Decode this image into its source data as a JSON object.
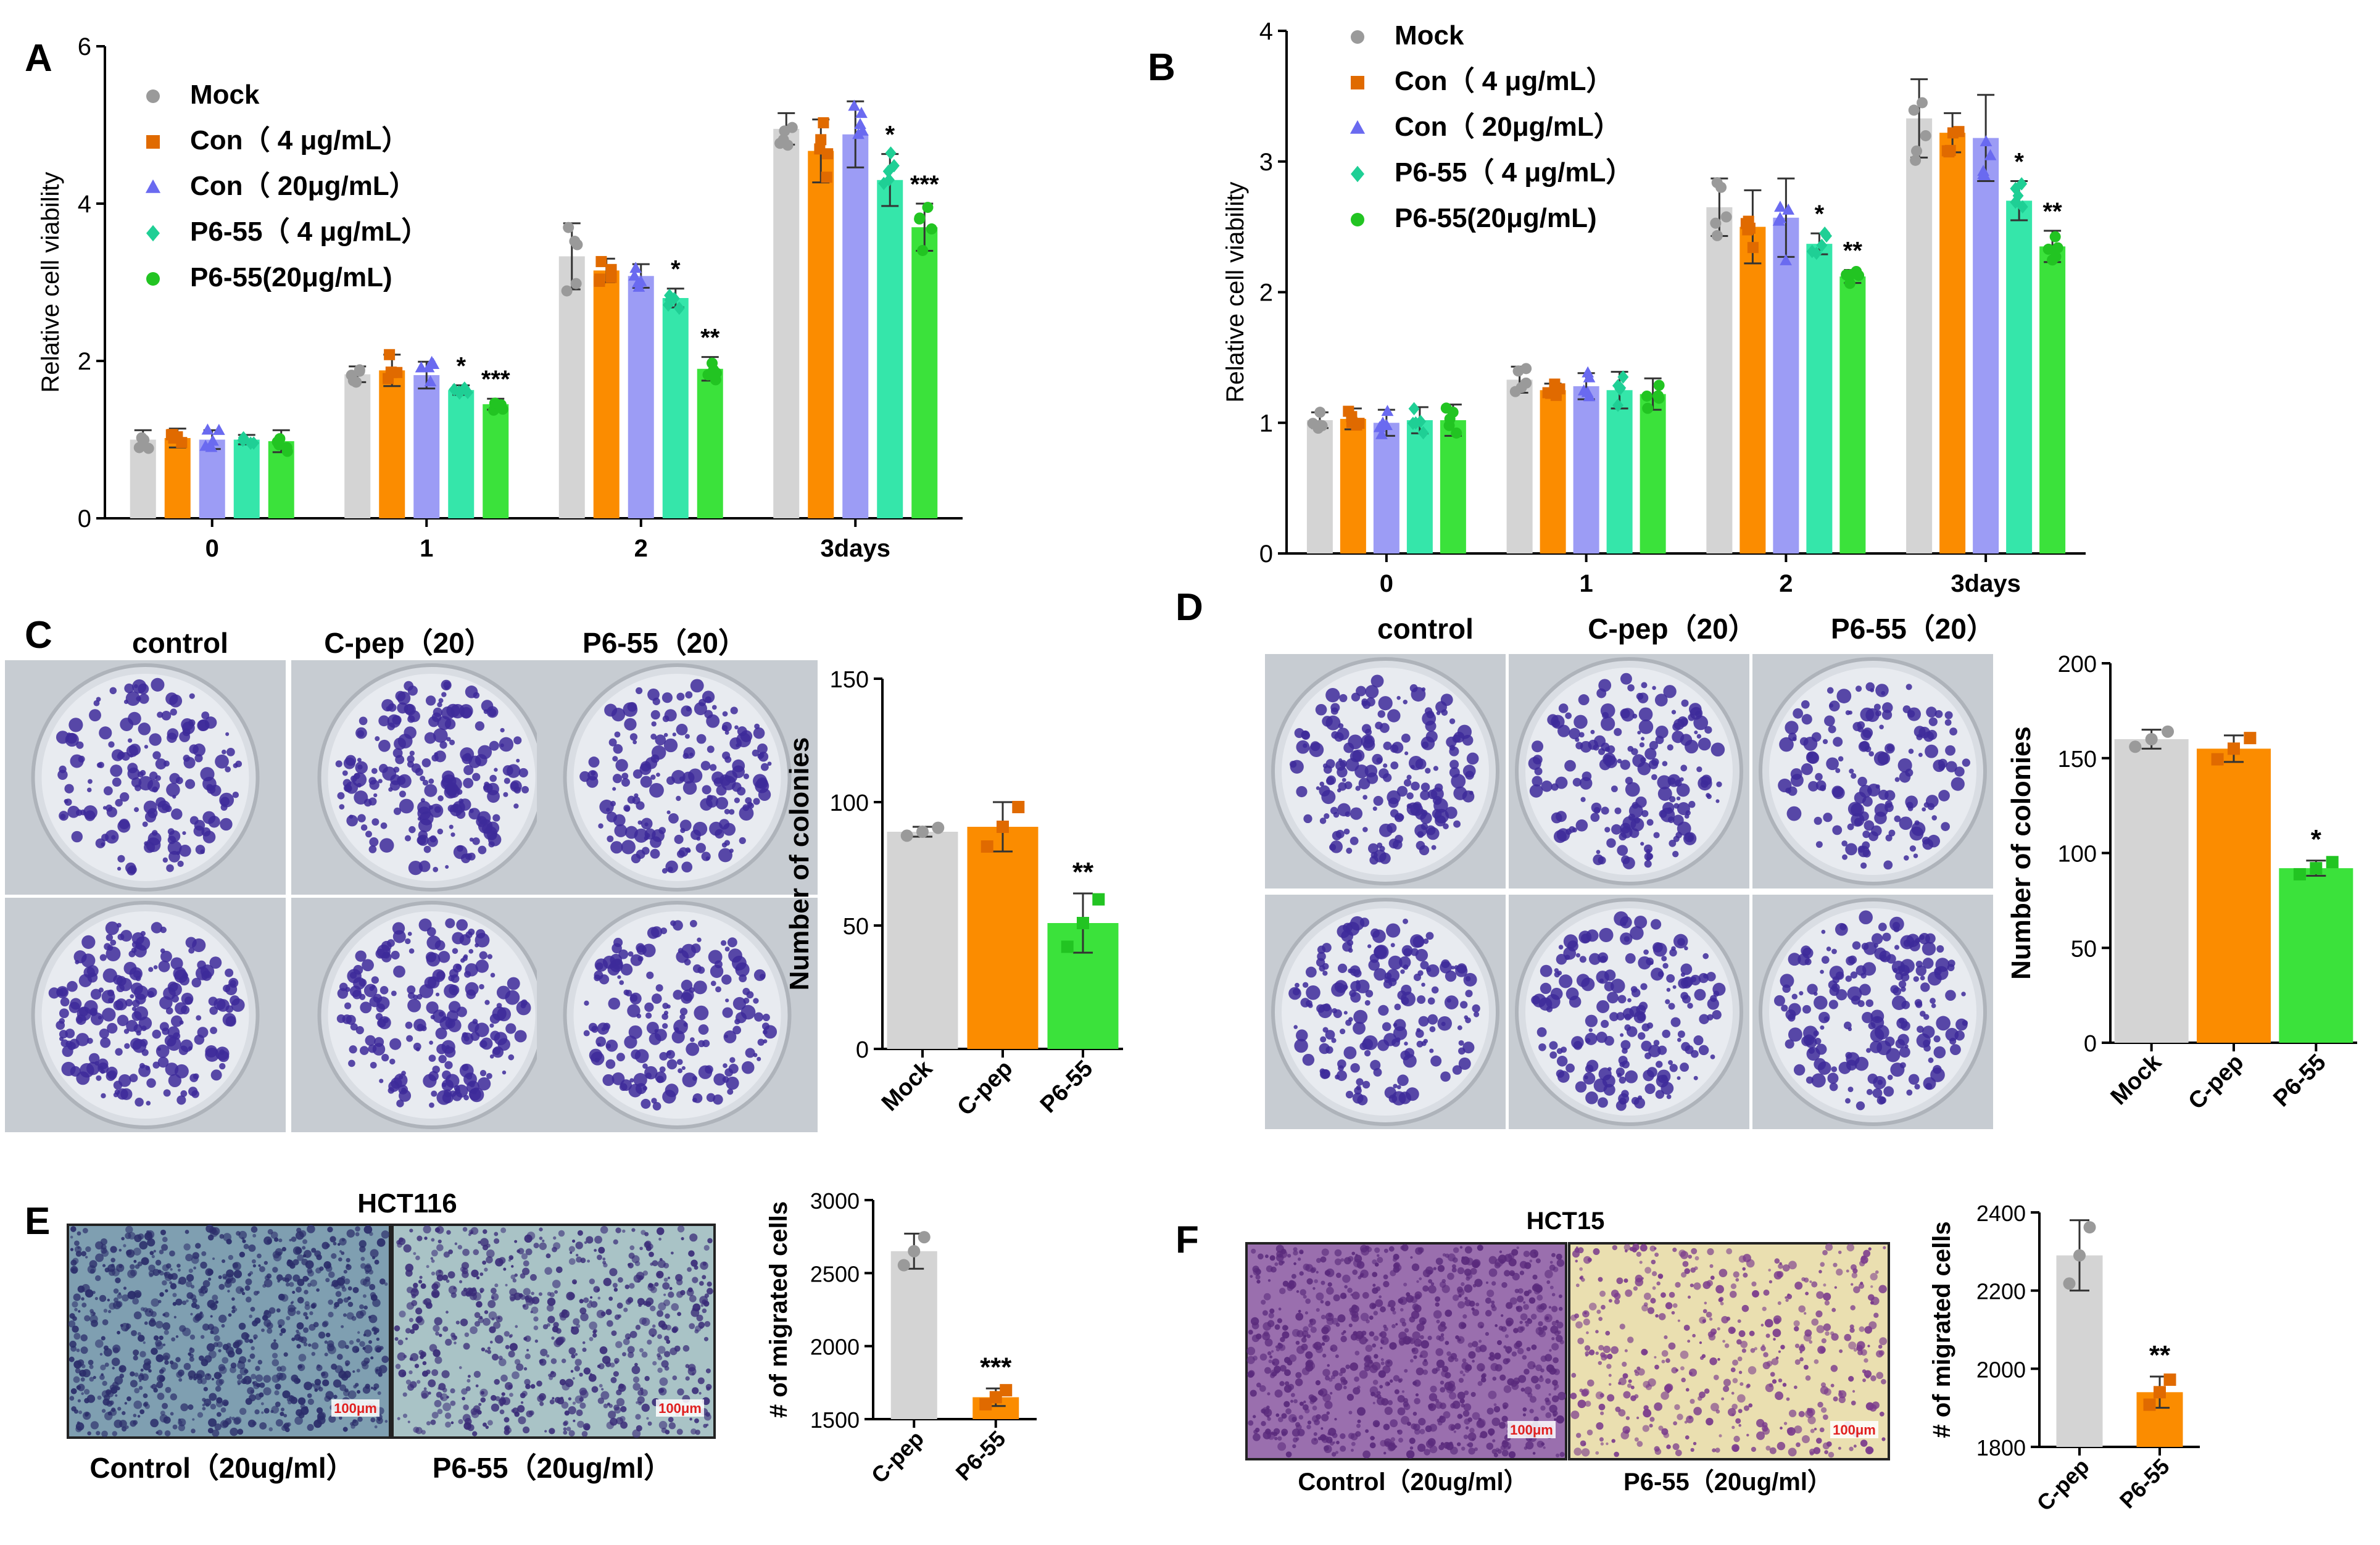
{
  "figure": {
    "panel_letters": [
      "A",
      "B",
      "C",
      "D",
      "E",
      "F"
    ],
    "colors": {
      "mock": "#d4d4d4",
      "con4": "#fb8c00",
      "con20": "#9c9cf5",
      "p4": "#35e6aa",
      "p20": "#3be23b",
      "text": "#000000"
    }
  },
  "chart_data": [
    {
      "panel": "A",
      "type": "bar",
      "categories": [
        "0",
        "1",
        "2",
        "3days"
      ],
      "xlabel": "",
      "ylabel": "Relative cell viability",
      "ylim": [
        0,
        6
      ],
      "yticks": [
        "0",
        "2",
        "4",
        "6"
      ],
      "legend": [
        "Mock",
        "Con（ 4 μg/mL）",
        "Con（ 20μg/mL）",
        "P6-55（ 4 μg/mL）",
        "P6-55(20μg/mL)"
      ],
      "legend_position": "top-left",
      "series": [
        {
          "name": "Mock",
          "values": [
            1.0,
            1.83,
            3.33,
            4.95
          ],
          "errors": [
            0.12,
            0.1,
            0.42,
            0.2
          ]
        },
        {
          "name": "Con（ 4 μg/mL）",
          "values": [
            1.02,
            1.88,
            3.15,
            4.67
          ],
          "errors": [
            0.12,
            0.2,
            0.15,
            0.4
          ]
        },
        {
          "name": "Con（ 20μg/mL）",
          "values": [
            1.0,
            1.82,
            3.08,
            4.88
          ],
          "errors": [
            0.12,
            0.17,
            0.15,
            0.42
          ]
        },
        {
          "name": "P6-55（ 4 μg/mL）",
          "values": [
            1.0,
            1.63,
            2.8,
            4.3
          ],
          "errors": [
            0.06,
            0.06,
            0.12,
            0.33
          ]
        },
        {
          "name": "P6-55(20μg/mL)",
          "values": [
            0.98,
            1.45,
            1.9,
            3.7
          ],
          "errors": [
            0.14,
            0.07,
            0.15,
            0.3
          ]
        }
      ],
      "annotations": [
        {
          "category": "1",
          "series": 3,
          "text": "*"
        },
        {
          "category": "1",
          "series": 4,
          "text": "***"
        },
        {
          "category": "2",
          "series": 3,
          "text": "*"
        },
        {
          "category": "2",
          "series": 4,
          "text": "**"
        },
        {
          "category": "3days",
          "series": 3,
          "text": "*"
        },
        {
          "category": "3days",
          "series": 4,
          "text": "***"
        }
      ]
    },
    {
      "panel": "B",
      "type": "bar",
      "categories": [
        "0",
        "1",
        "2",
        "3days"
      ],
      "xlabel": "",
      "ylabel": "Relative cell viability",
      "ylim": [
        0,
        4
      ],
      "yticks": [
        "0",
        "1",
        "2",
        "3",
        "4"
      ],
      "legend": [
        "Mock",
        "Con（ 4 μg/mL）",
        "Con（ 20μg/mL）",
        "P6-55（ 4 μg/mL）",
        "P6-55(20μg/mL)"
      ],
      "legend_position": "top-left",
      "series": [
        {
          "name": "Mock",
          "values": [
            1.02,
            1.33,
            2.65,
            3.33
          ],
          "errors": [
            0.06,
            0.1,
            0.22,
            0.3
          ]
        },
        {
          "name": "Con（ 4 μg/mL）",
          "values": [
            1.03,
            1.25,
            2.5,
            3.22
          ],
          "errors": [
            0.08,
            0.05,
            0.28,
            0.15
          ]
        },
        {
          "name": "Con（ 20μg/mL）",
          "values": [
            1.0,
            1.28,
            2.57,
            3.18
          ],
          "errors": [
            0.1,
            0.1,
            0.3,
            0.33
          ]
        },
        {
          "name": "P6-55（ 4 μg/mL）",
          "values": [
            1.02,
            1.25,
            2.37,
            2.7
          ],
          "errors": [
            0.1,
            0.14,
            0.08,
            0.15
          ]
        },
        {
          "name": "P6-55(20μg/mL)",
          "values": [
            1.02,
            1.22,
            2.12,
            2.35
          ],
          "errors": [
            0.12,
            0.12,
            0.05,
            0.12
          ]
        }
      ],
      "annotations": [
        {
          "category": "2",
          "series": 3,
          "text": "*"
        },
        {
          "category": "2",
          "series": 4,
          "text": "**"
        },
        {
          "category": "3days",
          "series": 3,
          "text": "*"
        },
        {
          "category": "3days",
          "series": 4,
          "text": "**"
        }
      ]
    },
    {
      "panel": "C",
      "type": "bar",
      "categories": [
        "Mock",
        "C-pep",
        "P6-55"
      ],
      "ylabel": "Number of colonies",
      "ylim": [
        0,
        150
      ],
      "yticks": [
        "0",
        "50",
        "100",
        "150"
      ],
      "values": [
        88,
        90,
        51
      ],
      "errors": [
        2,
        10,
        12
      ],
      "annotations": [
        {
          "category": "P6-55",
          "text": "**"
        }
      ]
    },
    {
      "panel": "D",
      "type": "bar",
      "categories": [
        "Mock",
        "C-pep",
        "P6-55"
      ],
      "ylabel": "Number of colonies",
      "ylim": [
        0,
        200
      ],
      "yticks": [
        "0",
        "50",
        "100",
        "150",
        "200"
      ],
      "values": [
        160,
        155,
        92
      ],
      "errors": [
        5,
        7,
        4
      ],
      "annotations": [
        {
          "category": "P6-55",
          "text": "*"
        }
      ]
    },
    {
      "panel": "E",
      "type": "bar",
      "categories": [
        "C-pep",
        "P6-55"
      ],
      "ylabel": "# of migrated cells",
      "ylim": [
        1500,
        3000
      ],
      "yticks": [
        "1500",
        "2000",
        "2500",
        "3000"
      ],
      "values": [
        2650,
        1650
      ],
      "errors": [
        120,
        60
      ],
      "annotations": [
        {
          "category": "P6-55",
          "text": "***"
        }
      ]
    },
    {
      "panel": "F",
      "type": "bar",
      "categories": [
        "C-pep",
        "P6-55"
      ],
      "ylabel": "# of migrated cells",
      "ylim": [
        1800,
        2400
      ],
      "yticks": [
        "1800",
        "2000",
        "2200",
        "2400"
      ],
      "values": [
        2290,
        1940
      ],
      "errors": [
        90,
        40
      ],
      "annotations": [
        {
          "category": "P6-55",
          "text": "**"
        }
      ]
    }
  ],
  "images": {
    "C": {
      "col_labels": [
        "control",
        "C-pep（20）",
        "P6-55（20）"
      ]
    },
    "D": {
      "col_labels": [
        "control",
        "C-pep（20）",
        "P6-55（20）"
      ]
    },
    "E": {
      "title": "HCT116",
      "col_labels": [
        "Control（20ug/ml）",
        "P6-55（20ug/ml）"
      ],
      "scale_bar": "100μm"
    },
    "F": {
      "title": "HCT15",
      "col_labels": [
        "Control（20ug/ml）",
        "P6-55（20ug/ml）"
      ],
      "scale_bar": "100μm"
    }
  }
}
